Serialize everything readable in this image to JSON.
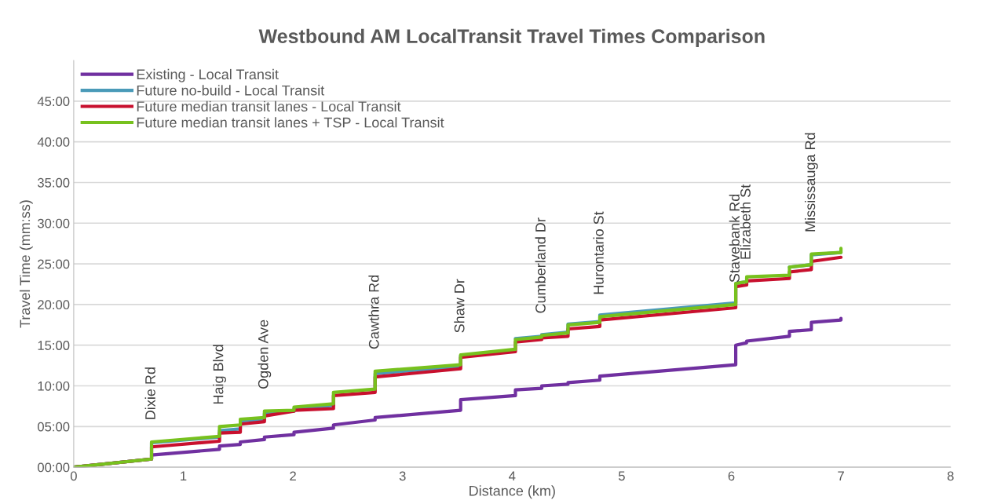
{
  "chart_data": {
    "type": "line",
    "title": "Westbound AM LocalTransit Travel Times Comparison",
    "xlabel": "Distance (km)",
    "ylabel": "Travel Time (mm:ss)",
    "xlim": [
      0,
      8
    ],
    "xticks": [
      0,
      1,
      2,
      3,
      4,
      5,
      6,
      7,
      8
    ],
    "ylim": [
      0,
      50
    ],
    "yticks": [
      {
        "value": 0,
        "label": "00:00"
      },
      {
        "value": 5,
        "label": "05:00"
      },
      {
        "value": 10,
        "label": "10:00"
      },
      {
        "value": 15,
        "label": "15:00"
      },
      {
        "value": 20,
        "label": "20:00"
      },
      {
        "value": 25,
        "label": "25:00"
      },
      {
        "value": 30,
        "label": "30:00"
      },
      {
        "value": 35,
        "label": "35:00"
      },
      {
        "value": 40,
        "label": "40:00"
      },
      {
        "value": 45,
        "label": "45:00"
      }
    ],
    "grid": "y",
    "legend": "top left",
    "marker": "none",
    "line_style": "solid",
    "series": [
      {
        "name": "Existing - Local Transit",
        "color": "#7030a0",
        "x": [
          0,
          0.71,
          0.71,
          1.33,
          1.33,
          1.52,
          1.52,
          1.74,
          1.74,
          2.01,
          2.01,
          2.37,
          2.37,
          2.75,
          2.75,
          3.53,
          3.53,
          4.03,
          4.03,
          4.27,
          4.27,
          4.51,
          4.51,
          4.8,
          4.8,
          6.04,
          6.04,
          6.14,
          6.14,
          6.53,
          6.53,
          6.73,
          6.73,
          7.0,
          7.0
        ],
        "values": [
          0,
          1.0,
          1.5,
          2.2,
          2.6,
          2.8,
          3.1,
          3.4,
          3.7,
          4.0,
          4.3,
          4.8,
          5.2,
          5.8,
          6.1,
          7.0,
          8.3,
          8.8,
          9.5,
          9.7,
          10.0,
          10.2,
          10.4,
          10.7,
          11.2,
          12.6,
          15.0,
          15.3,
          15.5,
          16.1,
          16.7,
          16.9,
          17.8,
          18.1,
          18.3
        ]
      },
      {
        "name": "Future no-build - Local Transit",
        "color": "#4a9ab8",
        "x": [
          0,
          0.71,
          0.71,
          1.33,
          1.33,
          1.52,
          1.52,
          1.74,
          1.74,
          2.01,
          2.01,
          2.37,
          null,
          2.75,
          2.75,
          3.53,
          3.53,
          null,
          4.03,
          4.27,
          4.27,
          4.51,
          4.51,
          4.8,
          4.8,
          6.04,
          6.04,
          6.14,
          6.14,
          null,
          6.53,
          6.73,
          6.73,
          7.0
        ],
        "values": [
          0,
          1.0,
          3.0,
          3.7,
          4.5,
          4.7,
          5.7,
          5.9,
          6.6,
          6.9,
          7.2,
          7.6,
          null,
          9.5,
          11.5,
          12.4,
          13.7,
          null,
          15.8,
          16.1,
          16.3,
          16.6,
          17.6,
          17.9,
          18.7,
          20.2,
          22.6,
          22.8,
          23.3,
          null,
          24.6,
          24.9,
          26.1,
          26.4
        ]
      },
      {
        "name": "Future median transit lanes - Local Transit",
        "color": "#c8102e",
        "x": [
          0,
          0.71,
          0.71,
          1.33,
          1.33,
          1.52,
          1.52,
          1.74,
          1.74,
          2.01,
          2.01,
          2.37,
          2.37,
          2.75,
          2.75,
          3.53,
          3.53,
          4.03,
          4.03,
          4.27,
          4.27,
          4.51,
          4.51,
          4.8,
          4.8,
          6.04,
          6.04,
          6.14,
          6.14,
          6.53,
          6.53,
          6.73,
          6.73,
          7.0
        ],
        "values": [
          0,
          1.0,
          2.5,
          3.2,
          4.2,
          4.3,
          5.3,
          5.6,
          6.3,
          6.9,
          7.0,
          7.2,
          8.8,
          9.2,
          11.1,
          12.1,
          13.5,
          14.2,
          15.4,
          15.7,
          15.9,
          16.1,
          17.0,
          17.3,
          18.1,
          19.6,
          22.2,
          22.4,
          22.9,
          23.2,
          24.0,
          24.3,
          25.3,
          25.8
        ]
      },
      {
        "name": "Future median transit lanes + TSP - Local Transit",
        "color": "#77c11e",
        "x": [
          0,
          0.71,
          0.71,
          1.33,
          1.33,
          1.52,
          1.52,
          1.74,
          1.74,
          2.01,
          2.01,
          2.37,
          2.37,
          2.75,
          2.75,
          3.53,
          3.53,
          4.03,
          4.03,
          4.27,
          4.27,
          4.51,
          4.51,
          4.8,
          4.8,
          6.04,
          6.04,
          6.14,
          6.14,
          6.53,
          6.53,
          6.73,
          6.73,
          7.0,
          7.0
        ],
        "values": [
          0,
          1.0,
          3.1,
          3.8,
          5.0,
          5.2,
          5.9,
          6.1,
          6.9,
          7.0,
          7.4,
          7.8,
          9.2,
          9.6,
          11.8,
          12.6,
          13.8,
          14.5,
          15.7,
          16.0,
          16.2,
          16.5,
          17.5,
          17.8,
          18.5,
          20.0,
          22.6,
          22.8,
          23.4,
          23.6,
          24.6,
          24.9,
          26.2,
          26.4,
          26.9
        ]
      }
    ],
    "annotations": [
      {
        "text": "Dixie Rd",
        "x": 0.71,
        "y": 3.1
      },
      {
        "text": "Haig Blvd",
        "x": 1.33,
        "y": 5.0
      },
      {
        "text": "Ogden Ave",
        "x": 1.74,
        "y": 6.9
      },
      {
        "text": "Cawthra Rd",
        "x": 2.75,
        "y": 11.8
      },
      {
        "text": "Shaw Dr",
        "x": 3.53,
        "y": 13.8
      },
      {
        "text": "Cumberland Dr",
        "x": 4.27,
        "y": 16.2
      },
      {
        "text": "Hurontario St",
        "x": 4.8,
        "y": 18.5
      },
      {
        "text": "Stavebank Rd",
        "x": 6.04,
        "y": 20.0
      },
      {
        "text": "Elizabeth St",
        "x": 6.14,
        "y": 22.8
      },
      {
        "text": "Mississauga Rd",
        "x": 6.73,
        "y": 26.2
      }
    ]
  }
}
